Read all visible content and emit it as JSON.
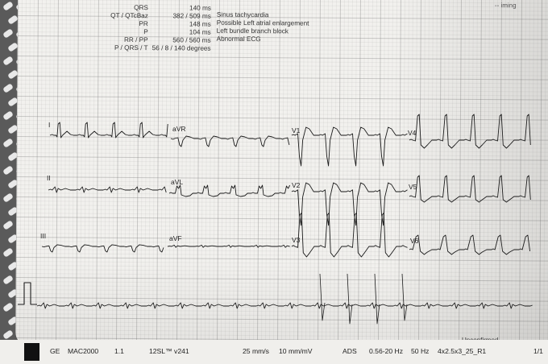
{
  "measurements": [
    {
      "label": "QRS",
      "value": "140 ms"
    },
    {
      "label": "QT / QTcBaz",
      "value": "382 / 509 ms"
    },
    {
      "label": "PR",
      "value": "148 ms"
    },
    {
      "label": "P",
      "value": "104 ms"
    },
    {
      "label": "RR / PP",
      "value": "560 / 560 ms"
    },
    {
      "label": "P / QRS / T",
      "value": "56 / 8 / 140 degrees"
    }
  ],
  "interpretation": [
    "Sinus tachycardia",
    "Possible Left atrial enlargement",
    "Left bundle branch block",
    "Abnormal ECG"
  ],
  "corner_text": "-- iming",
  "leads": {
    "row1": [
      "I",
      "aVR",
      "V1",
      "V4"
    ],
    "row2": [
      "II",
      "aVL",
      "V2",
      "V5"
    ],
    "row3": [
      "III",
      "aVF",
      "V3",
      "V6"
    ]
  },
  "footer": {
    "brand": "GE",
    "model": "MAC2000",
    "model_version": "1.1",
    "program": "12SL™ v241",
    "speed": "25 mm/s",
    "gain": "10 mm/mV",
    "filter_ads": "ADS",
    "filter_range": "0.56-20 Hz",
    "mains": "50 Hz",
    "layout": "4x2.5x3_25_R1",
    "page": "1/1"
  },
  "status": "Unconfirmed"
}
